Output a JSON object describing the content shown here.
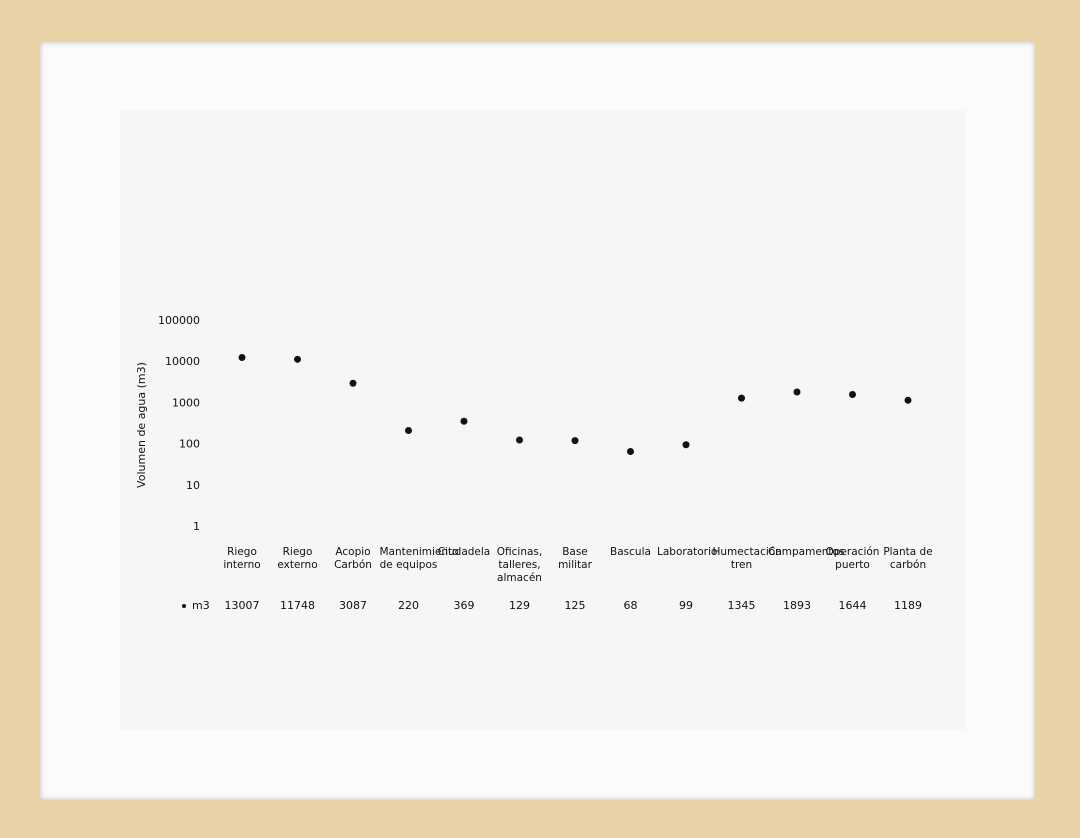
{
  "chart_data": {
    "type": "scatter",
    "y_label": "Volumen de agua (m3)",
    "categories": [
      "Riego interno",
      "Riego externo",
      "Acopio Carbón",
      "Mantenimiento de equipos",
      "Ciudadela",
      "Oficinas, talleres, almacén",
      "Base militar",
      "Bascula",
      "Laboratorio",
      "Humectación tren",
      "Campamentos",
      "Operación puerto",
      "Planta de carbón"
    ],
    "series": [
      {
        "name": "m3",
        "color": "#111111",
        "values": [
          13007,
          11748,
          3087,
          220,
          369,
          129,
          125,
          68,
          99,
          1345,
          1893,
          1644,
          1189
        ]
      }
    ],
    "log_scale": true,
    "ylim": [
      1,
      100000
    ],
    "yticks": [
      1,
      10,
      100,
      1000,
      10000,
      100000
    ],
    "grid": false,
    "data_table": true
  }
}
